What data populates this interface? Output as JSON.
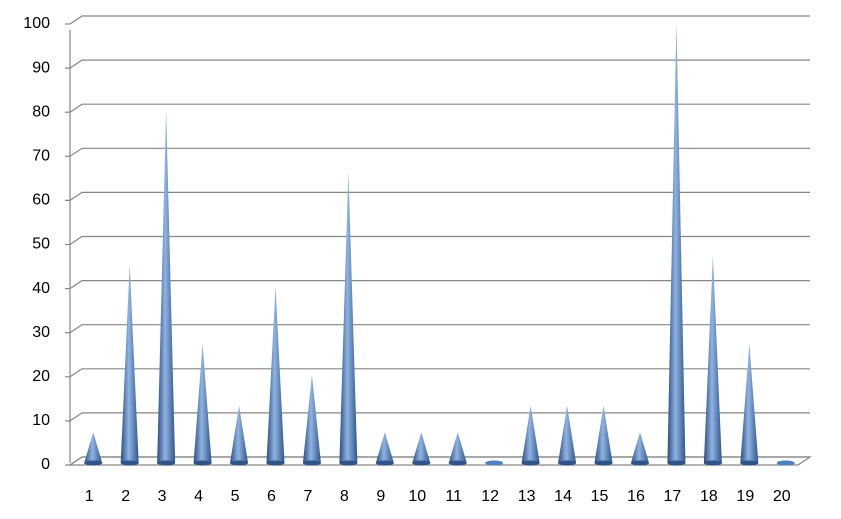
{
  "chart_data": {
    "type": "cone",
    "categories": [
      "1",
      "2",
      "3",
      "4",
      "5",
      "6",
      "7",
      "8",
      "9",
      "10",
      "11",
      "12",
      "13",
      "14",
      "15",
      "16",
      "17",
      "18",
      "19",
      "20"
    ],
    "values": [
      7,
      45,
      80,
      27,
      13,
      40,
      20,
      66,
      7,
      7,
      7,
      0,
      13,
      13,
      13,
      7,
      100,
      47,
      27,
      0
    ],
    "color": "#4f81bd",
    "ylim": [
      0,
      100
    ],
    "yticks": [
      0,
      10,
      20,
      30,
      40,
      50,
      60,
      70,
      80,
      90,
      100
    ],
    "grid": true
  }
}
